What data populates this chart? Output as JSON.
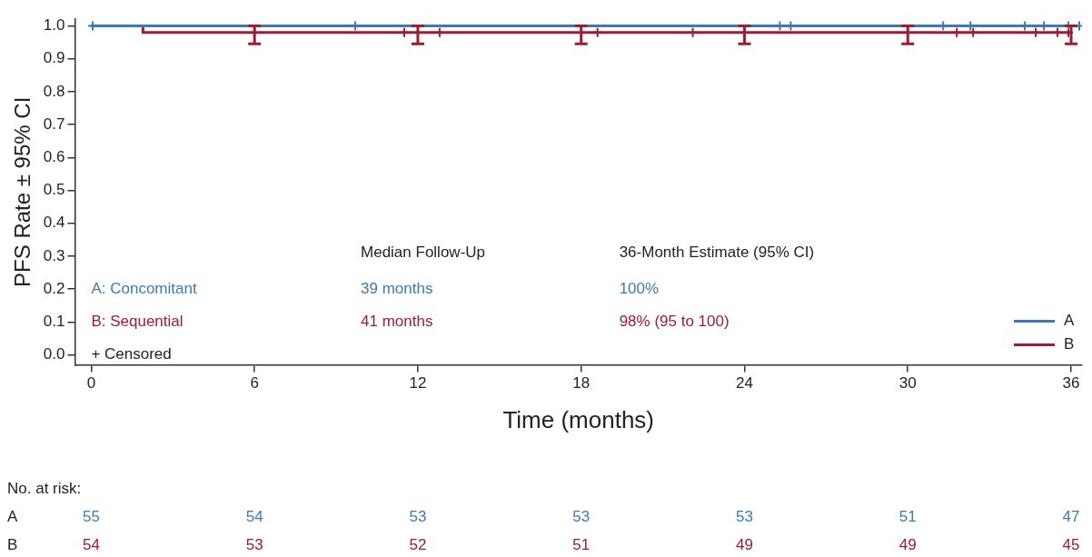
{
  "chart_data": {
    "type": "step",
    "xlabel": "Time (months)",
    "ylabel": "PFS Rate ± 95% CI",
    "xlim": [
      -0.6,
      36.4
    ],
    "ylim": [
      -0.03,
      1.02
    ],
    "xticks": [
      0,
      6,
      12,
      18,
      24,
      30,
      36
    ],
    "yticks": [
      {
        "value": 0,
        "label": "0.0"
      },
      {
        "value": 0.1,
        "label": "0.1"
      },
      {
        "value": 0.2,
        "label": "0.2"
      },
      {
        "value": 0.3,
        "label": "0.3"
      },
      {
        "value": 0.4,
        "label": "0.4"
      },
      {
        "value": 0.5,
        "label": "0.5"
      },
      {
        "value": 0.6,
        "label": "0.6"
      },
      {
        "value": 0.7,
        "label": "0.7"
      },
      {
        "value": 0.8,
        "label": "0.8"
      },
      {
        "value": 0.9,
        "label": "0.9"
      },
      {
        "value": 1,
        "label": "1.0"
      }
    ],
    "grid": false,
    "legend": "bottom right",
    "series": [
      {
        "name": "A",
        "color": "#3b7bb5",
        "marker": "none",
        "x": [
          0,
          36
        ],
        "values": [
          1,
          1
        ]
      },
      {
        "name": "B",
        "color": "#9e1b32",
        "marker": "none",
        "x": [
          0,
          1.9,
          6,
          12,
          18,
          24,
          30,
          36
        ],
        "values": [
          1,
          0.98,
          0.98,
          0.98,
          0.98,
          0.98,
          0.98,
          0.98
        ],
        "errors": [
          null,
          null,
          [
            0.945,
            1
          ],
          [
            0.945,
            1
          ],
          [
            0.945,
            1
          ],
          [
            0.945,
            1
          ],
          [
            0.945,
            1
          ],
          [
            0.945,
            1
          ]
        ]
      },
      {
        "type": "scatter",
        "color": "#3b7bb5",
        "marker": "cross",
        "x": [
          0.05,
          9.7,
          25.3,
          25.7,
          31.3,
          32.3,
          34.3,
          35,
          35.9,
          36.3
        ],
        "values": [
          1,
          1,
          1,
          1,
          1,
          1,
          1,
          1,
          1,
          1
        ]
      },
      {
        "type": "scatter",
        "color": "#9e1b32",
        "marker": "cross",
        "x": [
          11.5,
          12.8,
          18.6,
          22.1,
          31.8,
          32.4,
          34.7,
          35.5,
          35.9
        ],
        "values": [
          0.98,
          0.98,
          0.98,
          0.98,
          0.98,
          0.98,
          0.98,
          0.98,
          0.98
        ]
      }
    ],
    "annotations": [
      "Median Follow-Up",
      "36-Month Estimate (95% CI)",
      "A: Concomitant",
      "39 months",
      "100%",
      "B: Sequential",
      "41 months",
      "98% (95 to 100)",
      "+ Censored",
      "No. at risk:",
      "A",
      "B",
      "55",
      "54",
      "53",
      "53",
      "53",
      "51",
      "47",
      "54",
      "53",
      "52",
      "51",
      "49",
      "49",
      "45"
    ]
  }
}
